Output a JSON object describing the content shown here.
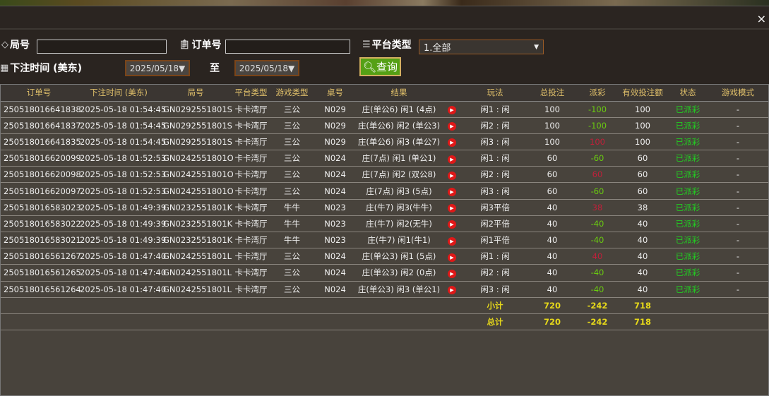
{
  "dialog": {
    "close": "×"
  },
  "filters": {
    "round_label": "局号",
    "round_value": "",
    "order_label": "订单号",
    "order_value": "",
    "platform_label": "平台类型",
    "platform_value": "1.全部",
    "time_label": "下注时间 (美东)",
    "date_from": "2025/05/18▼",
    "to_label": "至",
    "date_to": "2025/05/18▼",
    "query": "查询"
  },
  "table": {
    "headers": [
      "订单号",
      "下注时间 (美东)",
      "局号",
      "平台类型",
      "游戏类型",
      "桌号",
      "结果",
      "",
      "玩法",
      "总投注",
      "派彩",
      "有效投注额",
      "状态",
      "游戏模式"
    ],
    "rows": [
      [
        "250518016641838",
        "2025-05-18 01:54:45",
        "GN0292551801S",
        "卡卡湾厅",
        "三公",
        "N029",
        "庄(单公6) 闲1 (4点)",
        "闲1 : 闲",
        "100",
        "-100",
        "100",
        "已派彩",
        "-"
      ],
      [
        "250518016641837",
        "2025-05-18 01:54:45",
        "GN0292551801S",
        "卡卡湾厅",
        "三公",
        "N029",
        "庄(单公6) 闲2 (单公3)",
        "闲2 : 闲",
        "100",
        "-100",
        "100",
        "已派彩",
        "-"
      ],
      [
        "250518016641835",
        "2025-05-18 01:54:45",
        "GN0292551801S",
        "卡卡湾厅",
        "三公",
        "N029",
        "庄(单公6) 闲3 (单公7)",
        "闲3 : 闲",
        "100",
        "100",
        "100",
        "已派彩",
        "-"
      ],
      [
        "250518016620099",
        "2025-05-18 01:52:53",
        "GN0242551801O",
        "卡卡湾厅",
        "三公",
        "N024",
        "庄(7点) 闲1 (单公1)",
        "闲1 : 闲",
        "60",
        "-60",
        "60",
        "已派彩",
        "-"
      ],
      [
        "250518016620098",
        "2025-05-18 01:52:53",
        "GN0242551801O",
        "卡卡湾厅",
        "三公",
        "N024",
        "庄(7点) 闲2 (双公8)",
        "闲2 : 闲",
        "60",
        "60",
        "60",
        "已派彩",
        "-"
      ],
      [
        "250518016620097",
        "2025-05-18 01:52:53",
        "GN0242551801O",
        "卡卡湾厅",
        "三公",
        "N024",
        "庄(7点) 闲3 (5点)",
        "闲3 : 闲",
        "60",
        "-60",
        "60",
        "已派彩",
        "-"
      ],
      [
        "250518016583023",
        "2025-05-18 01:49:39",
        "GN0232551801K",
        "卡卡湾厅",
        "牛牛",
        "N023",
        "庄(牛7) 闲3(牛牛)",
        "闲3平倍",
        "40",
        "38",
        "38",
        "已派彩",
        "-"
      ],
      [
        "250518016583022",
        "2025-05-18 01:49:39",
        "GN0232551801K",
        "卡卡湾厅",
        "牛牛",
        "N023",
        "庄(牛7) 闲2(无牛)",
        "闲2平倍",
        "40",
        "-40",
        "40",
        "已派彩",
        "-"
      ],
      [
        "250518016583021",
        "2025-05-18 01:49:39",
        "GN0232551801K",
        "卡卡湾厅",
        "牛牛",
        "N023",
        "庄(牛7) 闲1(牛1)",
        "闲1平倍",
        "40",
        "-40",
        "40",
        "已派彩",
        "-"
      ],
      [
        "250518016561267",
        "2025-05-18 01:47:40",
        "GN0242551801L",
        "卡卡湾厅",
        "三公",
        "N024",
        "庄(单公3) 闲1 (5点)",
        "闲1 : 闲",
        "40",
        "40",
        "40",
        "已派彩",
        "-"
      ],
      [
        "250518016561265",
        "2025-05-18 01:47:40",
        "GN0242551801L",
        "卡卡湾厅",
        "三公",
        "N024",
        "庄(单公3) 闲2 (0点)",
        "闲2 : 闲",
        "40",
        "-40",
        "40",
        "已派彩",
        "-"
      ],
      [
        "250518016561264",
        "2025-05-18 01:47:40",
        "GN0242551801L",
        "卡卡湾厅",
        "三公",
        "N024",
        "庄(单公3) 闲3 (单公1)",
        "闲3 : 闲",
        "40",
        "-40",
        "40",
        "已派彩",
        "-"
      ]
    ],
    "subtotal": {
      "label": "小计",
      "total_bet": "720",
      "payout": "-242",
      "valid_bet": "718"
    },
    "total": {
      "label": "总计",
      "total_bet": "720",
      "payout": "-242",
      "valid_bet": "718"
    }
  },
  "colors": {
    "win_negative": "#6acc10",
    "win_positive": "#c0203a",
    "status": "#22cc22",
    "totals": "#e6d81a",
    "query_button": "#55a015"
  }
}
